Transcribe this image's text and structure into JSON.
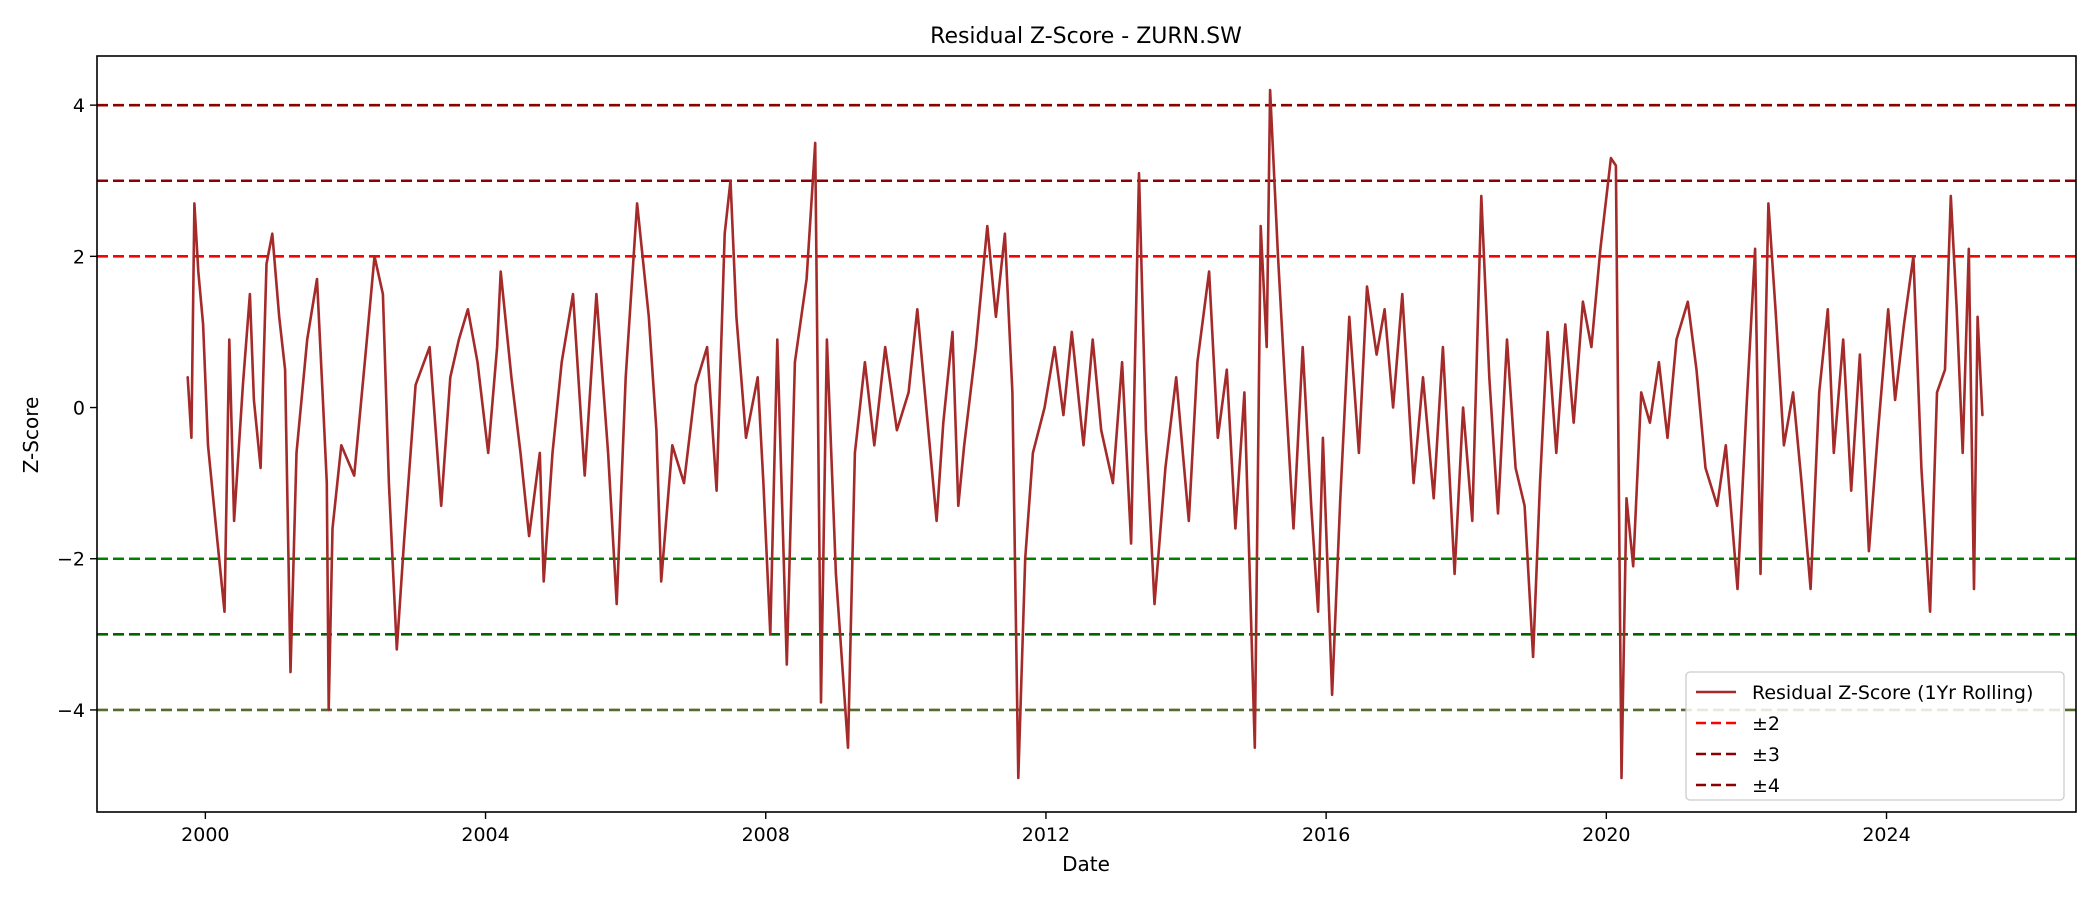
{
  "chart_data": {
    "type": "line",
    "title": "Residual Z-Score - ZURN.SW",
    "xlabel": "Date",
    "ylabel": "Z-Score",
    "xlim": [
      "1998-06-15",
      "2026-09-15"
    ],
    "ylim": [
      -5.35,
      4.65
    ],
    "x_ticks": [
      {
        "value": "2000-01-01",
        "label": "2000"
      },
      {
        "value": "2004-01-01",
        "label": "2004"
      },
      {
        "value": "2008-01-01",
        "label": "2008"
      },
      {
        "value": "2012-01-01",
        "label": "2012"
      },
      {
        "value": "2016-01-01",
        "label": "2016"
      },
      {
        "value": "2020-01-01",
        "label": "2020"
      },
      {
        "value": "2024-01-01",
        "label": "2024"
      }
    ],
    "y_ticks": [
      {
        "value": 4,
        "label": "4"
      },
      {
        "value": 2,
        "label": "2"
      },
      {
        "value": 0,
        "label": "0"
      },
      {
        "value": -2,
        "label": "−2"
      },
      {
        "value": -4,
        "label": "−4"
      }
    ],
    "grid": false,
    "legend_position": "lower-right",
    "series": [
      {
        "name": "Residual Z-Score (1Yr Rolling)",
        "color": "#a52a2a",
        "points": [
          [
            "1999-10-01",
            0.4
          ],
          [
            "1999-10-20",
            -0.4
          ],
          [
            "1999-11-05",
            2.7
          ],
          [
            "1999-11-25",
            1.8
          ],
          [
            "1999-12-20",
            1.1
          ],
          [
            "2000-01-15",
            -0.5
          ],
          [
            "2000-03-01",
            -1.7
          ],
          [
            "2000-04-10",
            -2.7
          ],
          [
            "2000-05-05",
            0.9
          ],
          [
            "2000-05-30",
            -1.5
          ],
          [
            "2000-07-15",
            0.3
          ],
          [
            "2000-08-20",
            1.5
          ],
          [
            "2000-09-10",
            0.1
          ],
          [
            "2000-10-15",
            -0.8
          ],
          [
            "2000-11-15",
            1.9
          ],
          [
            "2000-12-15",
            2.3
          ],
          [
            "2001-01-20",
            1.2
          ],
          [
            "2001-02-20",
            0.5
          ],
          [
            "2001-03-20",
            -3.5
          ],
          [
            "2001-04-20",
            -0.6
          ],
          [
            "2001-06-15",
            0.9
          ],
          [
            "2001-08-05",
            1.7
          ],
          [
            "2001-09-05",
            0.1
          ],
          [
            "2001-09-25",
            -1.0
          ],
          [
            "2001-10-05",
            -4.0
          ],
          [
            "2001-10-25",
            -1.6
          ],
          [
            "2001-12-10",
            -0.5
          ],
          [
            "2002-02-15",
            -0.9
          ],
          [
            "2002-04-15",
            0.7
          ],
          [
            "2002-06-01",
            2.0
          ],
          [
            "2002-07-15",
            1.5
          ],
          [
            "2002-08-15",
            -1.0
          ],
          [
            "2002-09-25",
            -3.2
          ],
          [
            "2002-11-01",
            -1.8
          ],
          [
            "2003-01-01",
            0.3
          ],
          [
            "2003-03-15",
            0.8
          ],
          [
            "2003-05-15",
            -1.3
          ],
          [
            "2003-07-01",
            0.4
          ],
          [
            "2003-08-15",
            0.9
          ],
          [
            "2003-10-01",
            1.3
          ],
          [
            "2003-11-20",
            0.6
          ],
          [
            "2004-01-15",
            -0.6
          ],
          [
            "2004-03-01",
            0.8
          ],
          [
            "2004-03-20",
            1.8
          ],
          [
            "2004-05-15",
            0.4
          ],
          [
            "2004-07-01",
            -0.6
          ],
          [
            "2004-08-15",
            -1.7
          ],
          [
            "2004-10-10",
            -0.6
          ],
          [
            "2004-10-30",
            -2.3
          ],
          [
            "2004-12-15",
            -0.6
          ],
          [
            "2005-02-01",
            0.6
          ],
          [
            "2005-04-01",
            1.5
          ],
          [
            "2005-06-01",
            -0.9
          ],
          [
            "2005-08-01",
            1.5
          ],
          [
            "2005-10-01",
            -0.6
          ],
          [
            "2005-11-15",
            -2.6
          ],
          [
            "2006-01-01",
            0.4
          ],
          [
            "2006-03-01",
            2.7
          ],
          [
            "2006-05-01",
            1.2
          ],
          [
            "2006-06-10",
            -0.3
          ],
          [
            "2006-07-05",
            -2.3
          ],
          [
            "2006-09-01",
            -0.5
          ],
          [
            "2006-11-01",
            -1.0
          ],
          [
            "2007-01-01",
            0.3
          ],
          [
            "2007-03-01",
            0.8
          ],
          [
            "2007-04-20",
            -1.1
          ],
          [
            "2007-06-01",
            2.3
          ],
          [
            "2007-07-01",
            3.0
          ],
          [
            "2007-08-01",
            1.2
          ],
          [
            "2007-09-20",
            -0.4
          ],
          [
            "2007-11-20",
            0.4
          ],
          [
            "2007-12-20",
            -1.0
          ],
          [
            "2008-01-25",
            -3.0
          ],
          [
            "2008-03-01",
            0.9
          ],
          [
            "2008-04-20",
            -3.4
          ],
          [
            "2008-06-01",
            0.6
          ],
          [
            "2008-08-01",
            1.7
          ],
          [
            "2008-09-15",
            3.5
          ],
          [
            "2008-10-15",
            -3.9
          ],
          [
            "2008-11-15",
            0.9
          ],
          [
            "2009-01-01",
            -2.2
          ],
          [
            "2009-03-05",
            -4.5
          ],
          [
            "2009-04-10",
            -0.6
          ],
          [
            "2009-06-01",
            0.6
          ],
          [
            "2009-07-20",
            -0.5
          ],
          [
            "2009-09-15",
            0.8
          ],
          [
            "2009-11-15",
            -0.3
          ],
          [
            "2010-01-15",
            0.2
          ],
          [
            "2010-03-01",
            1.3
          ],
          [
            "2010-05-01",
            -0.4
          ],
          [
            "2010-06-10",
            -1.5
          ],
          [
            "2010-07-15",
            -0.2
          ],
          [
            "2010-09-01",
            1.0
          ],
          [
            "2010-10-01",
            -1.3
          ],
          [
            "2010-11-01",
            -0.5
          ],
          [
            "2011-01-01",
            0.8
          ],
          [
            "2011-03-01",
            2.4
          ],
          [
            "2011-04-15",
            1.2
          ],
          [
            "2011-06-01",
            2.3
          ],
          [
            "2011-07-10",
            0.2
          ],
          [
            "2011-08-10",
            -4.9
          ],
          [
            "2011-09-15",
            -2.0
          ],
          [
            "2011-10-25",
            -0.6
          ],
          [
            "2011-12-25",
            0.0
          ],
          [
            "2012-02-15",
            0.8
          ],
          [
            "2012-04-01",
            -0.1
          ],
          [
            "2012-05-15",
            1.0
          ],
          [
            "2012-07-15",
            -0.5
          ],
          [
            "2012-09-01",
            0.9
          ],
          [
            "2012-10-15",
            -0.3
          ],
          [
            "2012-12-15",
            -1.0
          ],
          [
            "2013-02-01",
            0.6
          ],
          [
            "2013-03-20",
            -1.8
          ],
          [
            "2013-04-30",
            3.1
          ],
          [
            "2013-06-05",
            -0.3
          ],
          [
            "2013-07-20",
            -2.6
          ],
          [
            "2013-09-15",
            -0.8
          ],
          [
            "2013-11-10",
            0.4
          ],
          [
            "2014-01-15",
            -1.5
          ],
          [
            "2014-03-01",
            0.6
          ],
          [
            "2014-05-01",
            1.8
          ],
          [
            "2014-06-15",
            -0.4
          ],
          [
            "2014-08-01",
            0.5
          ],
          [
            "2014-09-15",
            -1.6
          ],
          [
            "2014-11-01",
            0.2
          ],
          [
            "2014-12-25",
            -4.5
          ],
          [
            "2015-01-25",
            2.4
          ],
          [
            "2015-02-25",
            0.8
          ],
          [
            "2015-03-15",
            4.2
          ],
          [
            "2015-04-25",
            2.0
          ],
          [
            "2015-06-01",
            0.3
          ],
          [
            "2015-07-15",
            -1.6
          ],
          [
            "2015-09-01",
            0.8
          ],
          [
            "2015-10-15",
            -1.3
          ],
          [
            "2015-11-20",
            -2.7
          ],
          [
            "2015-12-15",
            -0.4
          ],
          [
            "2016-02-01",
            -3.8
          ],
          [
            "2016-03-15",
            -1.2
          ],
          [
            "2016-05-01",
            1.2
          ],
          [
            "2016-06-20",
            -0.6
          ],
          [
            "2016-08-01",
            1.6
          ],
          [
            "2016-09-20",
            0.7
          ],
          [
            "2016-11-01",
            1.3
          ],
          [
            "2016-12-15",
            0.0
          ],
          [
            "2017-02-01",
            1.5
          ],
          [
            "2017-04-01",
            -1.0
          ],
          [
            "2017-05-20",
            0.4
          ],
          [
            "2017-07-15",
            -1.2
          ],
          [
            "2017-09-01",
            0.8
          ],
          [
            "2017-11-01",
            -2.2
          ],
          [
            "2017-12-15",
            0.0
          ],
          [
            "2018-02-01",
            -1.5
          ],
          [
            "2018-03-20",
            2.8
          ],
          [
            "2018-05-01",
            0.4
          ],
          [
            "2018-06-15",
            -1.4
          ],
          [
            "2018-08-01",
            0.9
          ],
          [
            "2018-09-15",
            -0.8
          ],
          [
            "2018-11-01",
            -1.3
          ],
          [
            "2018-12-15",
            -3.3
          ],
          [
            "2019-01-20",
            -1.0
          ],
          [
            "2019-03-01",
            1.0
          ],
          [
            "2019-04-15",
            -0.6
          ],
          [
            "2019-06-01",
            1.1
          ],
          [
            "2019-07-15",
            -0.2
          ],
          [
            "2019-09-01",
            1.4
          ],
          [
            "2019-10-15",
            0.8
          ],
          [
            "2019-12-01",
            2.1
          ],
          [
            "2020-01-25",
            3.3
          ],
          [
            "2020-02-20",
            3.2
          ],
          [
            "2020-03-20",
            -4.9
          ],
          [
            "2020-04-15",
            -1.2
          ],
          [
            "2020-05-20",
            -2.1
          ],
          [
            "2020-07-01",
            0.2
          ],
          [
            "2020-08-15",
            -0.2
          ],
          [
            "2020-10-01",
            0.6
          ],
          [
            "2020-11-15",
            -0.4
          ],
          [
            "2021-01-01",
            0.9
          ],
          [
            "2021-03-01",
            1.4
          ],
          [
            "2021-04-15",
            0.5
          ],
          [
            "2021-06-01",
            -0.8
          ],
          [
            "2021-08-01",
            -1.3
          ],
          [
            "2021-09-15",
            -0.5
          ],
          [
            "2021-11-15",
            -2.4
          ],
          [
            "2022-01-01",
            0.0
          ],
          [
            "2022-02-15",
            2.1
          ],
          [
            "2022-03-15",
            -2.2
          ],
          [
            "2022-04-25",
            2.7
          ],
          [
            "2022-06-01",
            1.3
          ],
          [
            "2022-07-15",
            -0.5
          ],
          [
            "2022-09-01",
            0.2
          ],
          [
            "2022-10-15",
            -1.0
          ],
          [
            "2022-12-01",
            -2.4
          ],
          [
            "2023-01-15",
            0.2
          ],
          [
            "2023-03-01",
            1.3
          ],
          [
            "2023-04-01",
            -0.6
          ],
          [
            "2023-05-20",
            0.9
          ],
          [
            "2023-07-01",
            -1.1
          ],
          [
            "2023-08-15",
            0.7
          ],
          [
            "2023-10-01",
            -1.9
          ],
          [
            "2023-11-15",
            -0.4
          ],
          [
            "2024-01-10",
            1.3
          ],
          [
            "2024-02-15",
            0.1
          ],
          [
            "2024-04-01",
            1.1
          ],
          [
            "2024-05-20",
            2.0
          ],
          [
            "2024-07-01",
            -0.8
          ],
          [
            "2024-08-15",
            -2.7
          ],
          [
            "2024-09-20",
            0.2
          ],
          [
            "2024-11-01",
            0.5
          ],
          [
            "2024-12-01",
            2.8
          ],
          [
            "2025-01-01",
            1.3
          ],
          [
            "2025-02-01",
            -0.6
          ],
          [
            "2025-03-05",
            2.1
          ],
          [
            "2025-04-01",
            -2.4
          ],
          [
            "2025-04-20",
            1.2
          ],
          [
            "2025-05-15",
            -0.1
          ]
        ]
      }
    ],
    "reference_lines": [
      {
        "y": 4,
        "color": "#8b0000"
      },
      {
        "y": 3,
        "color": "#8b0000"
      },
      {
        "y": 2,
        "color": "#ff0000"
      },
      {
        "y": -2,
        "color": "#008000"
      },
      {
        "y": -3,
        "color": "#006400"
      },
      {
        "y": -4,
        "color": "#556b2f"
      }
    ],
    "legend": [
      {
        "label": "Residual Z-Score (1Yr Rolling)",
        "color": "#a52a2a",
        "style": "solid"
      },
      {
        "label": "±2",
        "color": "#ff0000",
        "style": "dashed"
      },
      {
        "label": "±3",
        "color": "#8b0000",
        "style": "dashed"
      },
      {
        "label": "±4",
        "color": "#8b0000",
        "style": "dashed"
      }
    ]
  }
}
